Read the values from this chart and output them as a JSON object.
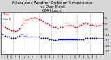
{
  "title": "Milwaukee Weather Outdoor Temperature\nvs Dew Point\n(24 Hours)",
  "title_fontsize": 4.0,
  "bg_color": "#d8d8d8",
  "plot_bg": "#ffffff",
  "temp": [
    -2,
    -3,
    -4,
    -5,
    -6,
    -6,
    -7,
    -6,
    -4,
    -1,
    1,
    3,
    4,
    5,
    5,
    6,
    5,
    4,
    3,
    2,
    1,
    0,
    -1,
    -2,
    -3,
    -3,
    -4,
    -3,
    -3,
    -2,
    -2,
    -1,
    -1,
    -2,
    -3,
    -3,
    -2,
    -1,
    0,
    1,
    0,
    -1,
    -1,
    -2,
    -2,
    -1,
    -1,
    0
  ],
  "dewpt": [
    -10,
    -11,
    -12,
    -12,
    -13,
    -13,
    -13,
    -12,
    -11,
    -10,
    -11,
    -11,
    -12,
    -12,
    -12,
    -12,
    -12,
    -12,
    -13,
    -13,
    -13,
    -13,
    -14,
    -14,
    -15,
    -15,
    -15,
    -14,
    -14,
    -14,
    -14,
    -14,
    -14,
    -14,
    -14,
    -14,
    -14,
    -14,
    -14,
    -13,
    -13,
    -13,
    -13,
    -13,
    -13,
    -13,
    -13,
    -13
  ],
  "ylim_min": -28,
  "ylim_max": 10,
  "grid_color": "#aaaaaa",
  "temp_color": "#ff0000",
  "dewpt_color": "#0000ff",
  "black_color": "#000000",
  "dot_size": 2.0,
  "vgrid_positions": [
    6,
    12,
    18,
    24,
    30,
    36,
    42,
    48
  ],
  "flat_line_x_start": 27,
  "flat_line_x_end": 36,
  "flat_line_y": -14,
  "yticks": [
    5,
    0,
    -5,
    -10,
    -15,
    -20,
    -25
  ],
  "xlabel_ticks": [
    1,
    3,
    5,
    7,
    9,
    11,
    13,
    15,
    17,
    19,
    21,
    23,
    25,
    27,
    29,
    31,
    33,
    35,
    37,
    39,
    41,
    43,
    45,
    47
  ],
  "xlabel_labels": [
    "1",
    "3",
    "5",
    "7",
    "9",
    "1",
    "3",
    "5",
    "7",
    "9",
    "1",
    "3",
    "5",
    "7",
    "9",
    "1",
    "3",
    "5",
    "7",
    "9",
    "1",
    "3",
    "5",
    "7"
  ]
}
